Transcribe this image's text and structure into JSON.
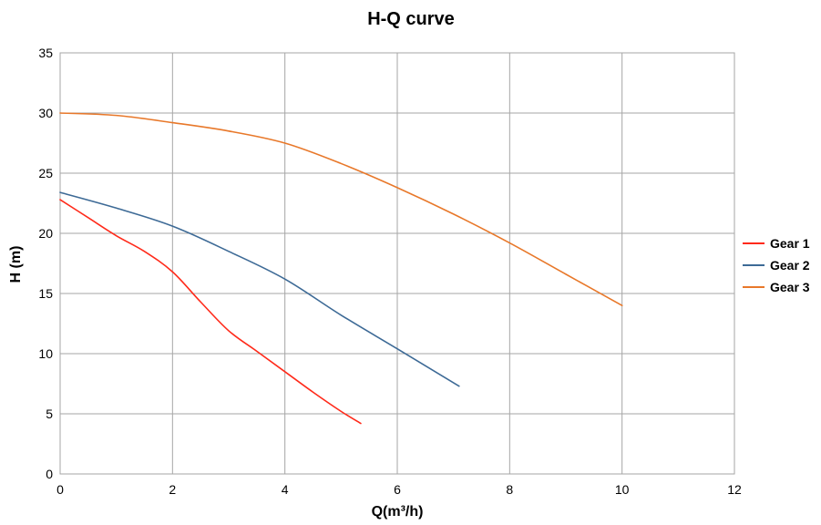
{
  "chart_data": {
    "type": "line",
    "title": "H-Q  curve",
    "xlabel": "Q(m³/h)",
    "ylabel": "H  (m)",
    "xlim": [
      0,
      12
    ],
    "ylim": [
      0,
      35
    ],
    "x_ticks": [
      0,
      2,
      4,
      6,
      8,
      10,
      12
    ],
    "y_ticks": [
      0,
      5,
      10,
      15,
      20,
      25,
      30,
      35
    ],
    "grid": true,
    "legend_position": "right",
    "series": [
      {
        "name": "Gear 1",
        "color": "#ff2a1a",
        "x": [
          0,
          0.5,
          1.0,
          1.5,
          2.0,
          2.5,
          3.0,
          3.5,
          4.0,
          4.5,
          5.0,
          5.35
        ],
        "y": [
          22.8,
          21.3,
          19.8,
          18.5,
          16.8,
          14.3,
          11.9,
          10.2,
          8.5,
          6.8,
          5.2,
          4.2
        ]
      },
      {
        "name": "Gear 2",
        "color": "#3d6a96",
        "x": [
          0,
          1,
          2,
          3,
          4,
          5,
          6,
          7.1
        ],
        "y": [
          23.4,
          22.1,
          20.6,
          18.5,
          16.2,
          13.2,
          10.4,
          7.3
        ]
      },
      {
        "name": "Gear 3",
        "color": "#e8782a",
        "x": [
          0,
          1,
          2,
          3,
          4,
          5,
          6,
          7,
          8,
          9,
          10
        ],
        "y": [
          30,
          29.8,
          29.2,
          28.5,
          27.5,
          25.8,
          23.8,
          21.6,
          19.2,
          16.6,
          14.0
        ]
      }
    ]
  }
}
